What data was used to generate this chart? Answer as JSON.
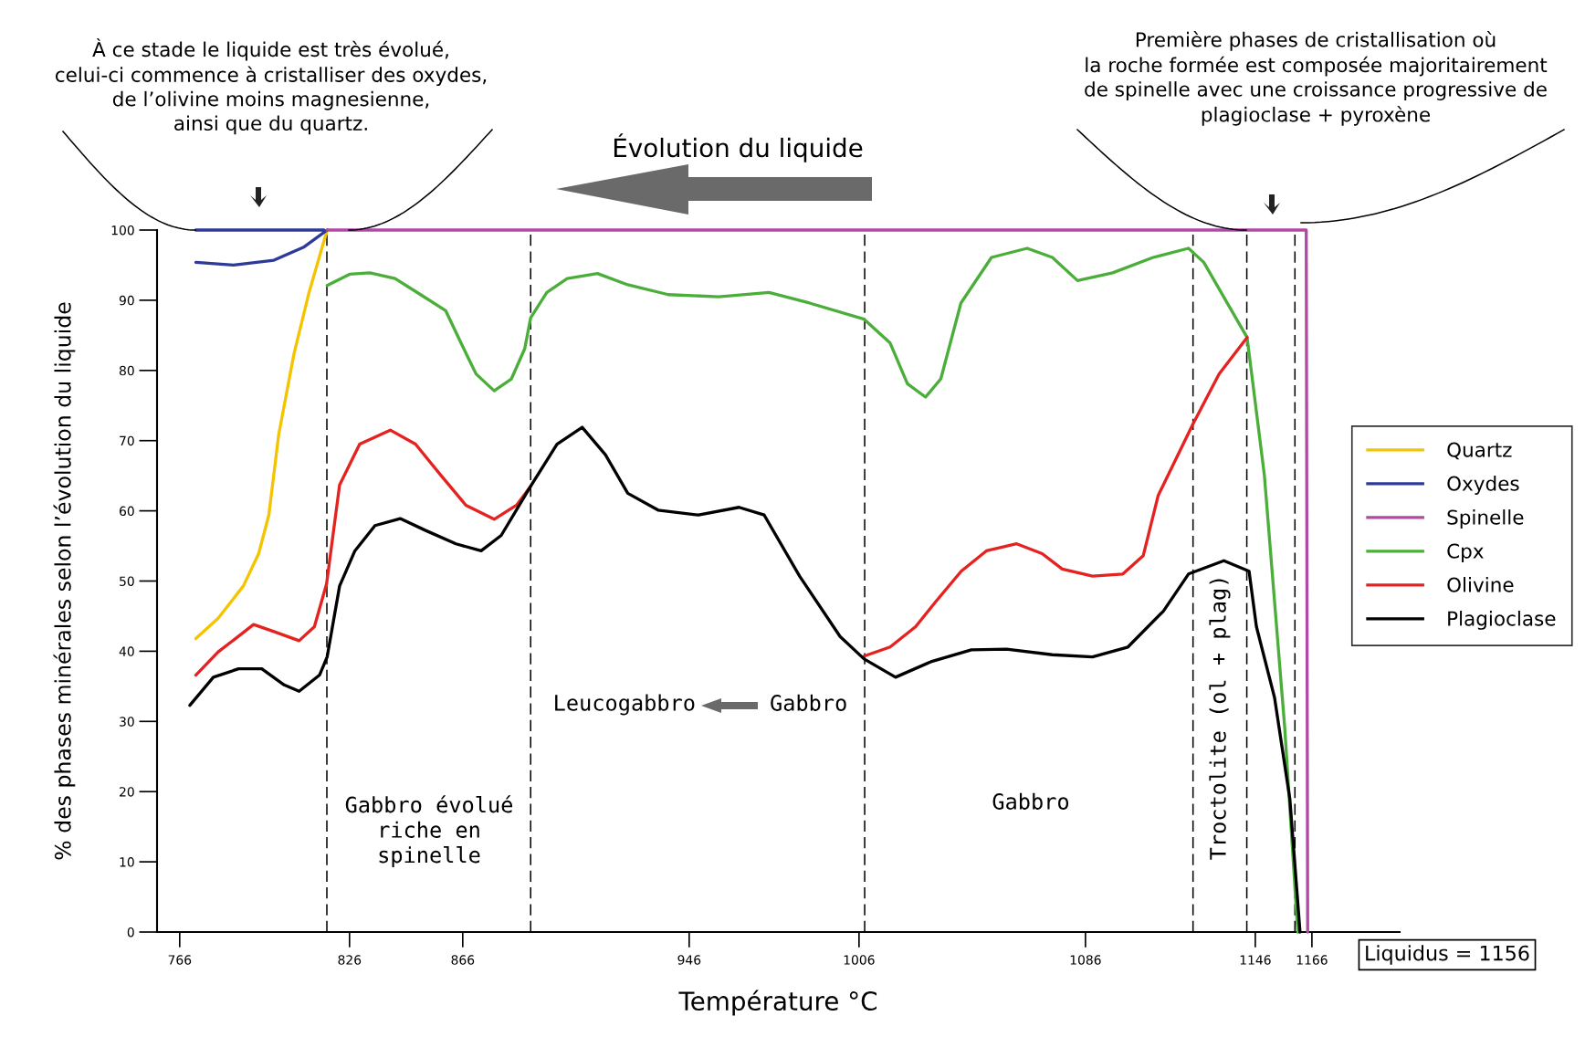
{
  "chart_data": {
    "type": "line",
    "xlabel": "Température °C",
    "ylabel": "% des phases minérales selon l’évolution du liquide",
    "xlim": [
      758,
      1197
    ],
    "ylim": [
      0,
      100
    ],
    "xticks": [
      766,
      826,
      866,
      946,
      1006,
      1086,
      1146,
      1166
    ],
    "yticks": [
      0,
      10,
      20,
      30,
      40,
      50,
      60,
      70,
      80,
      90,
      100
    ],
    "grid": false,
    "legend": "right",
    "marker": "none",
    "line_style": "solid",
    "series": [
      {
        "name": "Quartz",
        "color": "#f5c400",
        "x": [
          771.7,
          779.6,
          788.5,
          793.9,
          797.5,
          801,
          806.4,
          811.7,
          818.1
        ],
        "values": [
          41.8,
          44.7,
          49.3,
          53.9,
          59.4,
          70.9,
          82.4,
          91.1,
          100
        ]
      },
      {
        "name": "Oxydes",
        "color": "#2e3a97",
        "x": [
          771.7,
          817,
          795,
          771.7,
          785,
          799.3,
          810,
          818.1
        ],
        "values": [
          100,
          100,
          null,
          95.4,
          95,
          95.7,
          97.6,
          100
        ]
      },
      {
        "name": "Spinelle",
        "color": "#b04aa5",
        "x": [
          818.1,
          1164,
          1164.5
        ],
        "values": [
          100,
          100,
          0
        ]
      },
      {
        "name": "Cpx",
        "color": "#4cae3a",
        "x": [
          818.1,
          826,
          833.2,
          842.1,
          851.1,
          860,
          865.4,
          870.7,
          877.1,
          883.2,
          887.9,
          890,
          895.7,
          902.9,
          913.6,
          924.3,
          938.6,
          956.4,
          974.2,
          988.5,
          1007.8,
          1017,
          1023.1,
          1029.5,
          1034.9,
          1042,
          1052.8,
          1065.4,
          1074.3,
          1083.2,
          1095.6,
          1109.9,
          1122.4,
          1127.8,
          1143.1,
          1149.2,
          1156.4,
          1161
        ],
        "values": [
          92.1,
          93.7,
          93.9,
          93.1,
          90.8,
          88.5,
          83.9,
          79.5,
          77.1,
          78.8,
          83.1,
          87.5,
          91.1,
          93.1,
          93.8,
          92.2,
          90.8,
          90.5,
          91.1,
          89.6,
          87.3,
          83.9,
          78.1,
          76.2,
          78.8,
          89.6,
          96.1,
          97.4,
          96.1,
          92.8,
          93.9,
          96.1,
          97.4,
          95.4,
          84.7,
          65.1,
          29.1,
          0
        ]
      },
      {
        "name": "Olivine",
        "color": "#e42320",
        "x": [
          771.7,
          779.6,
          792.1,
          799.3,
          808.2,
          813.6,
          817.9,
          822.5,
          829.6,
          840.4,
          849.3,
          858.2,
          867.1,
          877.1,
          885,
          890,
          950,
          1007.8,
          1017,
          1026,
          1033.2,
          1042.1,
          1051,
          1061.7,
          1070.7,
          1077.8,
          1088.5,
          1099.2,
          1106.4,
          1111.7,
          1123.9,
          1133.2,
          1143.1
        ],
        "values": [
          36.6,
          39.9,
          43.8,
          42.8,
          41.5,
          43.5,
          49.6,
          63.7,
          69.5,
          71.5,
          69.5,
          65.1,
          60.8,
          58.8,
          60.8,
          63.5,
          null,
          39.3,
          40.6,
          43.5,
          47.1,
          51.4,
          54.3,
          55.3,
          53.9,
          51.7,
          50.7,
          51,
          53.6,
          62.2,
          72.3,
          79.5,
          84.7
        ]
      },
      {
        "name": "Plagioclase",
        "color": "#000000",
        "x": [
          769.6,
          777.9,
          786.8,
          795,
          802.9,
          808.2,
          815.4,
          818.1,
          822.5,
          827.9,
          835,
          843.9,
          852.9,
          863.6,
          872.5,
          879.6,
          890,
          899.3,
          908.2,
          916.4,
          924.3,
          935,
          949.3,
          963.6,
          972.5,
          985,
          999.3,
          1007.8,
          1018.9,
          1031.4,
          1045.7,
          1058.1,
          1074.3,
          1088.5,
          1101,
          1113.5,
          1122.4,
          1134.9,
          1143.8,
          1146.4,
          1152.8,
          1158.2,
          1161.8
        ],
        "values": [
          32.3,
          36.3,
          37.5,
          37.5,
          35.2,
          34.3,
          36.6,
          39.2,
          49.3,
          54.3,
          57.9,
          58.9,
          57.2,
          55.3,
          54.3,
          56.5,
          63.5,
          69.5,
          71.9,
          68,
          62.5,
          60.1,
          59.4,
          60.5,
          59.4,
          50.7,
          42.1,
          38.9,
          36.3,
          38.5,
          40.2,
          40.3,
          39.5,
          39.2,
          40.6,
          45.7,
          51,
          52.9,
          51.4,
          43.5,
          33.4,
          19,
          0
        ]
      }
    ],
    "ref_lines": [
      {
        "axis": "x",
        "value": 818,
        "color": "#000000",
        "line_style": "dashed"
      },
      {
        "axis": "x",
        "value": 890,
        "color": "#000000",
        "line_style": "dashed"
      },
      {
        "axis": "x",
        "value": 1008,
        "color": "#000000",
        "line_style": "dashed"
      },
      {
        "axis": "x",
        "value": 1124,
        "color": "#000000",
        "line_style": "dashed"
      },
      {
        "axis": "x",
        "value": 1143,
        "color": "#000000",
        "line_style": "dashed"
      },
      {
        "axis": "x",
        "value": 1160,
        "color": "#000000",
        "line_style": "dashed"
      }
    ],
    "annotations": [
      "À ce stade le liquide est très évolué,\ncelui-ci commence à cristalliser des oxydes,\nde l’olivine moins magnesienne,\nainsi que du quartz.",
      "Première phases de cristallisation où\nla roche formée est composée majoritairement\nde spinelle avec une croissance progressive de\nplagioclase + pyroxène",
      "Évolution du liquide",
      "Liquidus = 1156",
      "Gabbro évolué\nriche en\nspinelle",
      "Gabbro",
      "Troctolite (ol + plag)",
      "Leucogabbro",
      "Gabbro"
    ]
  }
}
